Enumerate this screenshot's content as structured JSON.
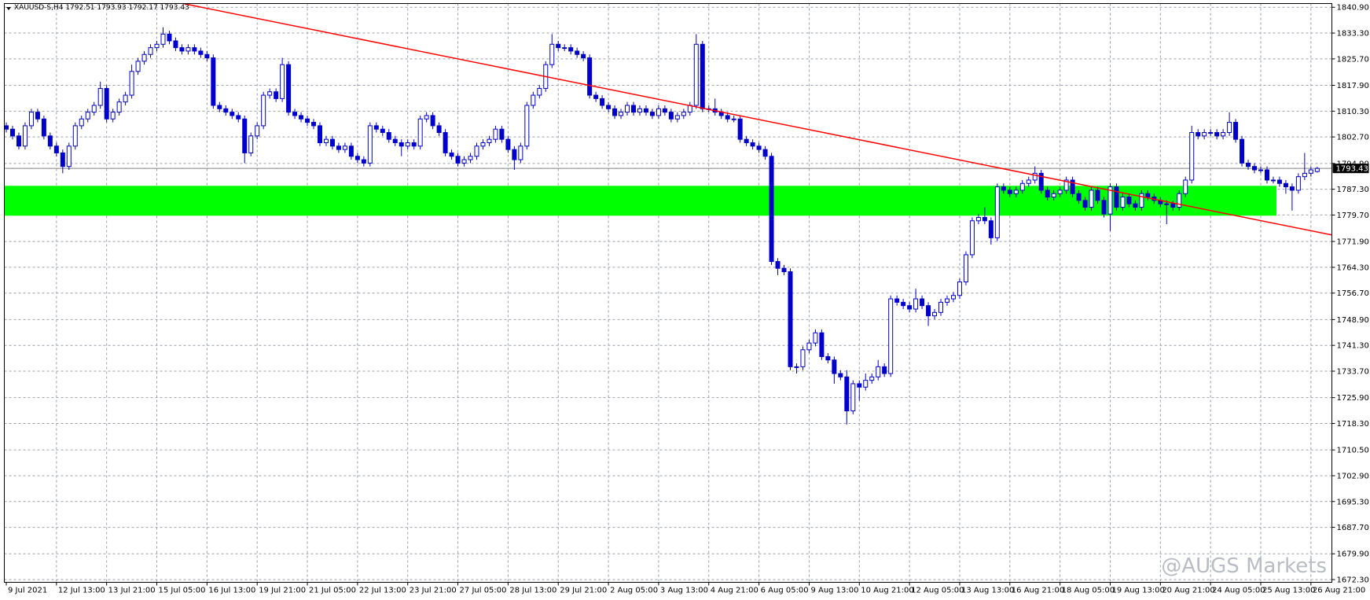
{
  "chart_data": {
    "type": "candlestick",
    "title": "XAUUSD-S,H4  1792.51 1793.93 1792.17 1793.43",
    "watermark": "@AUGS Markets",
    "colors": {
      "up": "#ffffff",
      "down": "#0000cc",
      "outline": "#0000cc",
      "zone": "#00ff00",
      "trendline": "#ff0000",
      "price_line": "#808080"
    },
    "grid": true,
    "ylim": [
      1671.5,
      1842.0
    ],
    "yticks": [
      {
        "value": 1840.9,
        "label": "1840.90"
      },
      {
        "value": 1833.3,
        "label": "1833.30"
      },
      {
        "value": 1825.7,
        "label": "1825.70"
      },
      {
        "value": 1817.9,
        "label": "1817.90"
      },
      {
        "value": 1810.3,
        "label": "1810.30"
      },
      {
        "value": 1802.7,
        "label": "1802.70"
      },
      {
        "value": 1794.9,
        "label": "1794.90"
      },
      {
        "value": 1787.3,
        "label": "1787.30"
      },
      {
        "value": 1779.7,
        "label": "1779.70"
      },
      {
        "value": 1771.9,
        "label": "1771.90"
      },
      {
        "value": 1764.3,
        "label": "1764.30"
      },
      {
        "value": 1756.7,
        "label": "1756.70"
      },
      {
        "value": 1748.9,
        "label": "1748.90"
      },
      {
        "value": 1741.3,
        "label": "1741.30"
      },
      {
        "value": 1733.7,
        "label": "1733.70"
      },
      {
        "value": 1725.9,
        "label": "1725.90"
      },
      {
        "value": 1718.3,
        "label": "1718.30"
      },
      {
        "value": 1710.5,
        "label": "1710.50"
      },
      {
        "value": 1702.9,
        "label": "1702.90"
      },
      {
        "value": 1695.3,
        "label": "1695.30"
      },
      {
        "value": 1687.7,
        "label": "1687.70"
      },
      {
        "value": 1679.9,
        "label": "1679.90"
      },
      {
        "value": 1672.3,
        "label": "1672.30"
      }
    ],
    "last_price": 1793.43,
    "zone": {
      "low": 1779.5,
      "high": 1788.3,
      "x_end": 202
    },
    "trendline": {
      "x": [
        28.2,
        211.4
      ],
      "y": [
        1842.0,
        1773.8
      ]
    },
    "categories": [
      "9 Jul 2021",
      null,
      null,
      null,
      null,
      null,
      null,
      null,
      "12 Jul 13:00",
      null,
      null,
      null,
      null,
      null,
      null,
      null,
      "13 Jul 21:00",
      null,
      null,
      null,
      null,
      null,
      null,
      null,
      "15 Jul 05:00",
      null,
      null,
      null,
      null,
      null,
      null,
      null,
      "16 Jul 13:00",
      null,
      null,
      null,
      null,
      null,
      null,
      null,
      "19 Jul 21:00",
      null,
      null,
      null,
      null,
      null,
      null,
      null,
      "21 Jul 05:00",
      null,
      null,
      null,
      null,
      null,
      null,
      null,
      "22 Jul 13:00",
      null,
      null,
      null,
      null,
      null,
      null,
      null,
      "23 Jul 21:00",
      null,
      null,
      null,
      null,
      null,
      null,
      null,
      "27 Jul 05:00",
      null,
      null,
      null,
      null,
      null,
      null,
      null,
      "28 Jul 13:00",
      null,
      null,
      null,
      null,
      null,
      null,
      null,
      "29 Jul 21:00",
      null,
      null,
      null,
      null,
      null,
      null,
      null,
      "2 Aug 05:00",
      null,
      null,
      null,
      null,
      null,
      null,
      null,
      "3 Aug 13:00",
      null,
      null,
      null,
      null,
      null,
      null,
      null,
      "4 Aug 21:00",
      null,
      null,
      null,
      null,
      null,
      null,
      null,
      "6 Aug 05:00",
      null,
      null,
      null,
      null,
      null,
      null,
      null,
      "9 Aug 13:00",
      null,
      null,
      null,
      null,
      null,
      null,
      null,
      "10 Aug 21:00",
      null,
      null,
      null,
      null,
      null,
      null,
      null,
      "12 Aug 05:00",
      null,
      null,
      null,
      null,
      null,
      null,
      null,
      "13 Aug 13:00",
      null,
      null,
      null,
      null,
      null,
      null,
      null,
      "16 Aug 21:00",
      null,
      null,
      null,
      null,
      null,
      null,
      null,
      "18 Aug 05:00",
      null,
      null,
      null,
      null,
      null,
      null,
      null,
      "19 Aug 13:00",
      null,
      null,
      null,
      null,
      null,
      null,
      null,
      "20 Aug 21:00",
      null,
      null,
      null,
      null,
      null,
      null,
      null,
      "24 Aug 05:00",
      null,
      null,
      null,
      null,
      null,
      null,
      null,
      "25 Aug 13:00",
      null,
      null,
      null,
      null,
      null,
      null,
      null,
      "26 Aug 21:00",
      null
    ],
    "open": [
      1806,
      1805,
      1803,
      1800,
      1806,
      1810,
      1808,
      1803,
      1800,
      1798,
      1794,
      1800,
      1806,
      1808,
      1810,
      1812,
      1817,
      1808,
      1810,
      1813,
      1815,
      1822,
      1825,
      1827,
      1829,
      1830,
      1833,
      1831,
      1829,
      1828,
      1829,
      1828,
      1827,
      1826,
      1812,
      1811,
      1810,
      1809,
      1808,
      1798,
      1803,
      1806,
      1815,
      1816,
      1814,
      1824,
      1810,
      1809,
      1808,
      1807,
      1806,
      1801,
      1802,
      1800,
      1799,
      1800,
      1797,
      1796,
      1795,
      1806,
      1805,
      1804,
      1802,
      1801,
      1800,
      1801,
      1800,
      1808,
      1809,
      1806,
      1804,
      1798,
      1797,
      1795,
      1796,
      1797,
      1800,
      1801,
      1802,
      1805,
      1802,
      1799,
      1796,
      1800,
      1812,
      1815,
      1817,
      1824,
      1830,
      1829,
      1829,
      1828,
      1827,
      1826,
      1815,
      1814,
      1812,
      1811,
      1809,
      1810,
      1812,
      1810,
      1811,
      1810,
      1809,
      1811,
      1810,
      1808,
      1809,
      1810,
      1812,
      1830,
      1811,
      1811,
      1810,
      1809,
      1808,
      1808,
      1802,
      1801,
      1800,
      1799,
      1797,
      1766,
      1764,
      1763,
      1735,
      1735,
      1740,
      1742,
      1745,
      1738,
      1737,
      1733,
      1732,
      1722,
      1730,
      1729,
      1731,
      1732,
      1735,
      1733,
      1755,
      1754,
      1753,
      1752,
      1755,
      1753,
      1750,
      1751,
      1754,
      1755,
      1756,
      1760,
      1768,
      1778,
      1779,
      1778,
      1773,
      1788,
      1787,
      1786,
      1787,
      1789,
      1790,
      1792,
      1787,
      1785,
      1786,
      1787,
      1790,
      1786,
      1784,
      1782,
      1787,
      1784,
      1780,
      1788,
      1782,
      1785,
      1783,
      1782,
      1786,
      1785,
      1784,
      1783,
      1783,
      1782,
      1786,
      1790,
      1804,
      1803,
      1804,
      1804,
      1803,
      1804,
      1807,
      1802,
      1795,
      1794,
      1793,
      1793,
      1790,
      1790,
      1789,
      1788,
      1787,
      1791,
      1792,
      1792.51
    ],
    "high": [
      1807,
      1806,
      1804,
      1807,
      1811,
      1811,
      1809,
      1804,
      1801,
      1799,
      1801,
      1807,
      1809,
      1811,
      1813,
      1819,
      1818,
      1811,
      1814,
      1816,
      1824,
      1826,
      1828,
      1830,
      1831,
      1835,
      1834,
      1832,
      1830,
      1830,
      1830,
      1829,
      1828,
      1827,
      1813,
      1812,
      1811,
      1810,
      1809,
      1804,
      1807,
      1816,
      1817,
      1817,
      1826,
      1825,
      1811,
      1810,
      1809,
      1808,
      1807,
      1803,
      1803,
      1801,
      1801,
      1801,
      1798,
      1797,
      1807,
      1807,
      1806,
      1805,
      1803,
      1802,
      1802,
      1802,
      1809,
      1810,
      1810,
      1807,
      1805,
      1799,
      1798,
      1797,
      1798,
      1801,
      1802,
      1803,
      1806,
      1806,
      1803,
      1800,
      1801,
      1813,
      1816,
      1818,
      1825,
      1833,
      1831,
      1830,
      1830,
      1829,
      1828,
      1827,
      1816,
      1815,
      1813,
      1812,
      1811,
      1813,
      1813,
      1812,
      1812,
      1811,
      1812,
      1812,
      1811,
      1810,
      1811,
      1813,
      1833,
      1831,
      1812,
      1814,
      1811,
      1810,
      1809,
      1809,
      1803,
      1802,
      1801,
      1800,
      1798,
      1767,
      1765,
      1764,
      1736,
      1741,
      1743,
      1746,
      1746,
      1739,
      1738,
      1734,
      1734,
      1731,
      1731,
      1733,
      1733,
      1737,
      1736,
      1756,
      1756,
      1755,
      1754,
      1758,
      1756,
      1754,
      1752,
      1755,
      1756,
      1757,
      1761,
      1769,
      1779,
      1780,
      1782,
      1779,
      1789,
      1789,
      1788,
      1788,
      1790,
      1791,
      1794,
      1793,
      1788,
      1787,
      1788,
      1791,
      1791,
      1787,
      1785,
      1788,
      1788,
      1785,
      1789,
      1789,
      1786,
      1786,
      1784,
      1787,
      1787,
      1786,
      1785,
      1784,
      1784,
      1787,
      1791,
      1806,
      1805,
      1805,
      1805,
      1805,
      1805,
      1810,
      1808,
      1803,
      1796,
      1795,
      1794,
      1794,
      1791,
      1791,
      1790,
      1789,
      1792,
      1798,
      1794,
      1793.93
    ],
    "low": [
      1804,
      1802,
      1799,
      1799,
      1805,
      1807,
      1802,
      1799,
      1797,
      1792,
      1793,
      1799,
      1805,
      1807,
      1809,
      1811,
      1807,
      1807,
      1809,
      1812,
      1814,
      1821,
      1824,
      1826,
      1828,
      1829,
      1830,
      1828,
      1827,
      1827,
      1827,
      1826,
      1825,
      1811,
      1810,
      1809,
      1808,
      1807,
      1795,
      1797,
      1802,
      1805,
      1814,
      1813,
      1813,
      1809,
      1808,
      1807,
      1806,
      1805,
      1800,
      1800,
      1799,
      1798,
      1798,
      1796,
      1795,
      1794,
      1794,
      1804,
      1803,
      1801,
      1800,
      1797,
      1799,
      1799,
      1799,
      1807,
      1805,
      1803,
      1797,
      1796,
      1794,
      1794,
      1795,
      1796,
      1799,
      1800,
      1801,
      1801,
      1798,
      1793,
      1795,
      1799,
      1811,
      1814,
      1816,
      1823,
      1828,
      1828,
      1827,
      1826,
      1825,
      1814,
      1813,
      1811,
      1810,
      1808,
      1808,
      1809,
      1809,
      1809,
      1809,
      1808,
      1808,
      1809,
      1807,
      1807,
      1808,
      1809,
      1811,
      1810,
      1810,
      1809,
      1808,
      1807,
      1807,
      1801,
      1800,
      1799,
      1798,
      1796,
      1765,
      1762,
      1762,
      1734,
      1733,
      1734,
      1739,
      1741,
      1737,
      1736,
      1730,
      1731,
      1718,
      1721,
      1725,
      1728,
      1730,
      1731,
      1732,
      1732,
      1753,
      1752,
      1751,
      1751,
      1752,
      1747,
      1749,
      1750,
      1753,
      1754,
      1755,
      1759,
      1767,
      1777,
      1777,
      1771,
      1772,
      1786,
      1785,
      1785,
      1786,
      1788,
      1789,
      1786,
      1784,
      1784,
      1785,
      1786,
      1785,
      1783,
      1781,
      1781,
      1783,
      1779,
      1775,
      1781,
      1781,
      1782,
      1781,
      1781,
      1784,
      1783,
      1782,
      1777,
      1781,
      1781,
      1785,
      1789,
      1802,
      1802,
      1803,
      1802,
      1802,
      1803,
      1801,
      1794,
      1793,
      1792,
      1792,
      1789,
      1789,
      1788,
      1786,
      1781,
      1786,
      1790,
      1791,
      1792.17
    ],
    "close": [
      1805,
      1803,
      1800,
      1806,
      1810,
      1808,
      1803,
      1800,
      1798,
      1794,
      1800,
      1806,
      1808,
      1810,
      1812,
      1817,
      1808,
      1810,
      1813,
      1815,
      1822,
      1825,
      1827,
      1829,
      1830,
      1833,
      1831,
      1829,
      1828,
      1829,
      1828,
      1827,
      1826,
      1812,
      1811,
      1810,
      1809,
      1808,
      1798,
      1803,
      1806,
      1815,
      1816,
      1814,
      1824,
      1810,
      1809,
      1808,
      1807,
      1806,
      1801,
      1802,
      1800,
      1799,
      1800,
      1797,
      1796,
      1795,
      1806,
      1805,
      1804,
      1802,
      1801,
      1800,
      1801,
      1800,
      1808,
      1809,
      1806,
      1804,
      1798,
      1797,
      1795,
      1796,
      1797,
      1800,
      1801,
      1802,
      1805,
      1802,
      1799,
      1796,
      1800,
      1812,
      1815,
      1817,
      1824,
      1830,
      1829,
      1829,
      1828,
      1827,
      1826,
      1815,
      1814,
      1812,
      1811,
      1809,
      1810,
      1812,
      1810,
      1811,
      1810,
      1809,
      1811,
      1810,
      1808,
      1809,
      1810,
      1812,
      1830,
      1811,
      1811,
      1810,
      1809,
      1808,
      1808,
      1802,
      1801,
      1800,
      1799,
      1797,
      1766,
      1764,
      1763,
      1735,
      1735,
      1740,
      1742,
      1745,
      1738,
      1737,
      1733,
      1732,
      1722,
      1730,
      1729,
      1731,
      1732,
      1735,
      1733,
      1755,
      1754,
      1753,
      1752,
      1755,
      1753,
      1750,
      1751,
      1754,
      1755,
      1756,
      1760,
      1768,
      1778,
      1779,
      1778,
      1773,
      1788,
      1787,
      1786,
      1787,
      1789,
      1790,
      1792,
      1787,
      1785,
      1786,
      1787,
      1790,
      1786,
      1784,
      1782,
      1787,
      1784,
      1780,
      1788,
      1782,
      1785,
      1783,
      1782,
      1786,
      1785,
      1784,
      1783,
      1783,
      1782,
      1786,
      1790,
      1804,
      1803,
      1804,
      1804,
      1803,
      1804,
      1807,
      1802,
      1795,
      1794,
      1793,
      1793,
      1790,
      1790,
      1789,
      1788,
      1787,
      1791,
      1792,
      1793,
      1793.43
    ]
  }
}
